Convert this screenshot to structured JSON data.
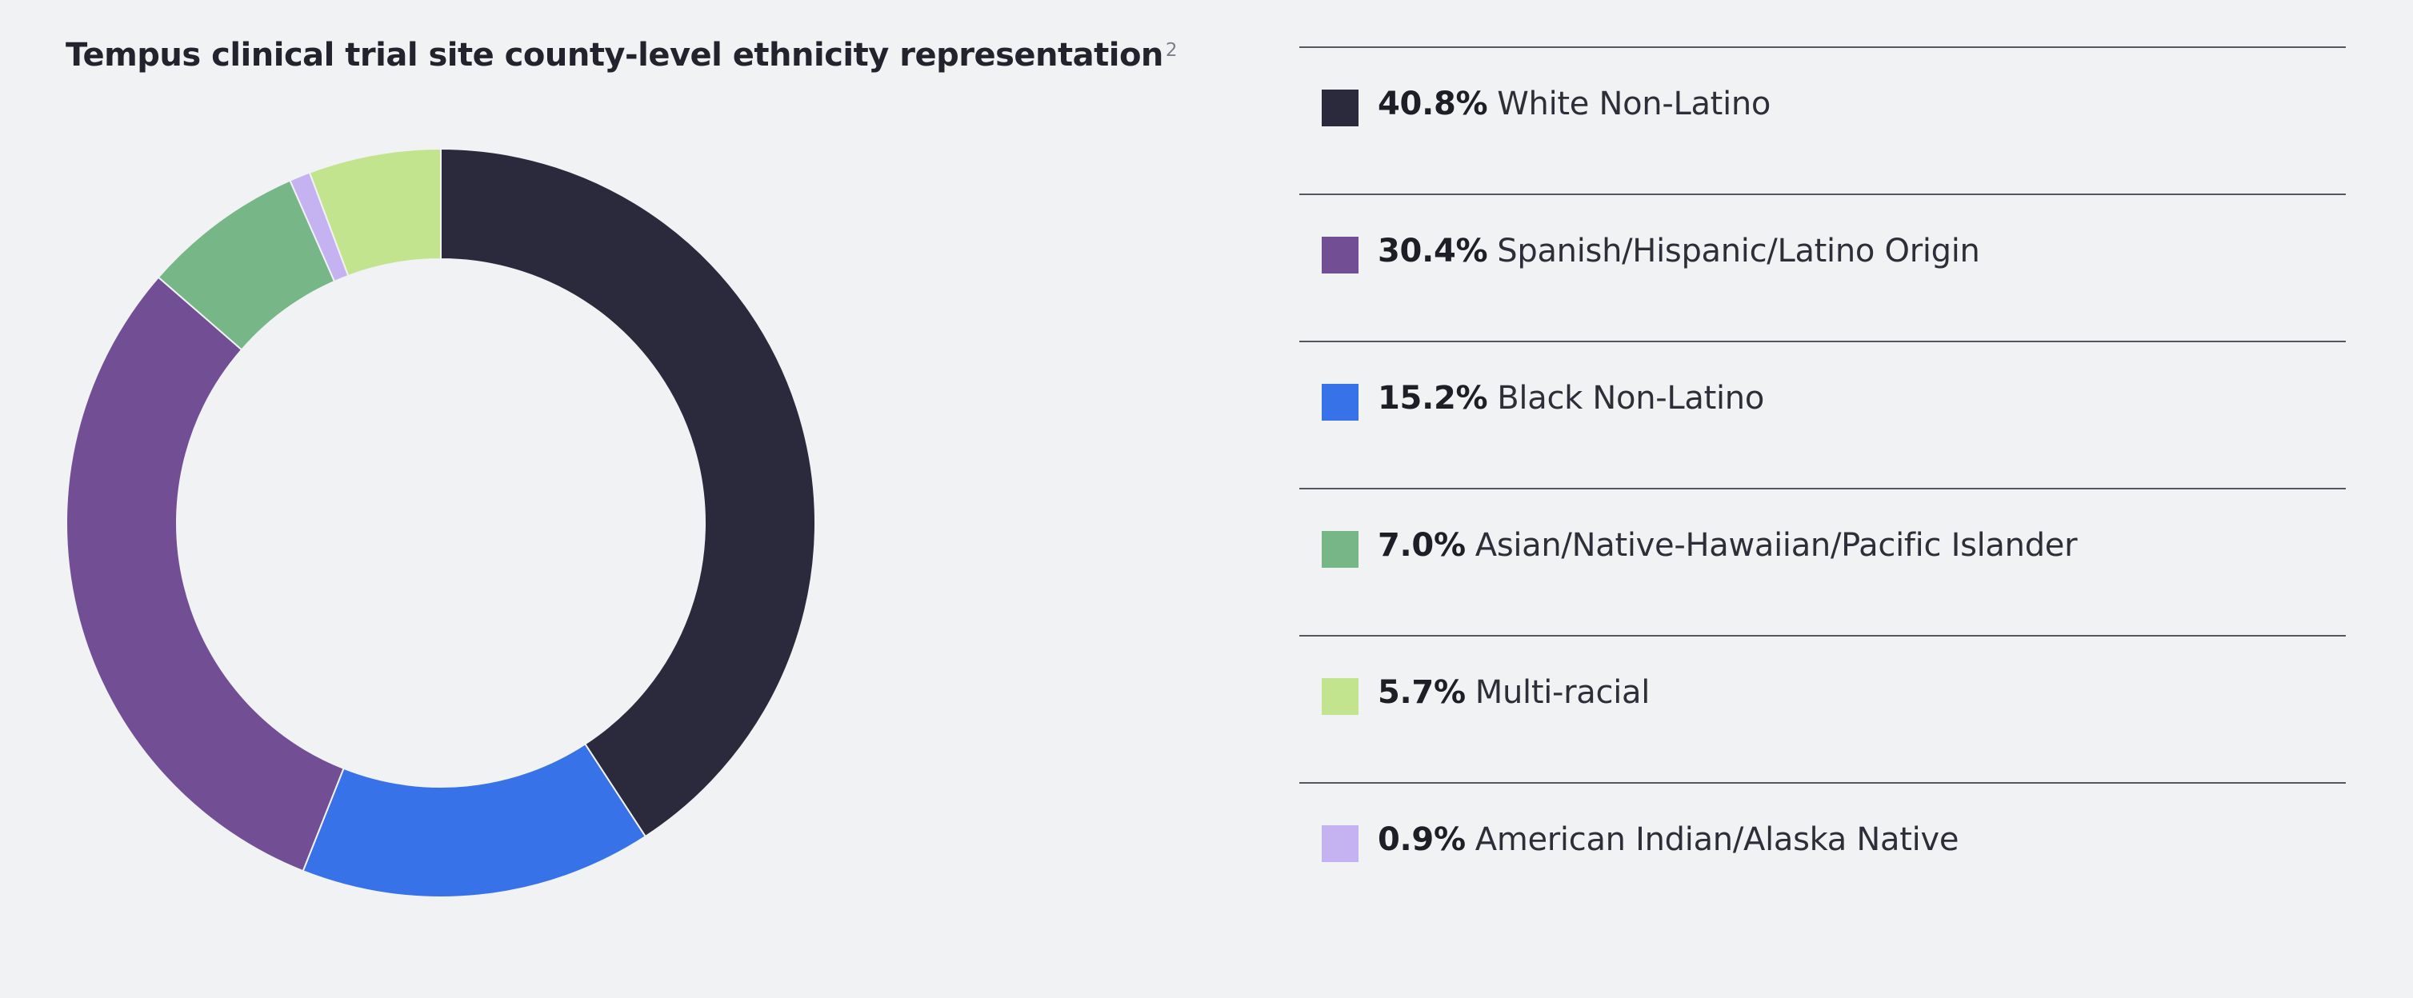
{
  "chart_data": {
    "type": "pie",
    "title": "Tempus clinical trial site county-level ethnicity representation",
    "title_superscript": "2",
    "donut": true,
    "legend_position": "right",
    "slices": [
      {
        "label": "White Non-Latino",
        "value": 40.8,
        "display": "40.8%",
        "color": "#2b2a3c"
      },
      {
        "label": "Black Non-Latino",
        "value": 15.2,
        "display": "15.2%",
        "color": "#3872e8"
      },
      {
        "label": "Spanish/Hispanic/Latino Origin",
        "value": 30.4,
        "display": "30.4%",
        "color": "#724e94"
      },
      {
        "label": "Asian/Native-Hawaiian/Pacific Islander",
        "value": 7.0,
        "display": "7.0%",
        "color": "#77b686"
      },
      {
        "label": "American Indian/Alaska Native",
        "value": 0.9,
        "display": "0.9%",
        "color": "#c4b3f0"
      },
      {
        "label": "Multi-racial",
        "value": 5.7,
        "display": "5.7%",
        "color": "#c3e48e"
      }
    ],
    "legend": [
      {
        "pct": "40.8%",
        "label": "White Non-Latino",
        "color": "#2b2a3c"
      },
      {
        "pct": "30.4%",
        "label": "Spanish/Hispanic/Latino Origin",
        "color": "#724e94"
      },
      {
        "pct": "15.2%",
        "label": "Black Non-Latino",
        "color": "#3872e8"
      },
      {
        "pct": "7.0%",
        "label": "Asian/Native-Hawaiian/Pacific Islander",
        "color": "#77b686"
      },
      {
        "pct": "5.7%",
        "label": "Multi-racial",
        "color": "#c3e48e"
      },
      {
        "pct": "0.9%",
        "label": "American Indian/Alaska Native",
        "color": "#c4b3f0"
      }
    ]
  }
}
